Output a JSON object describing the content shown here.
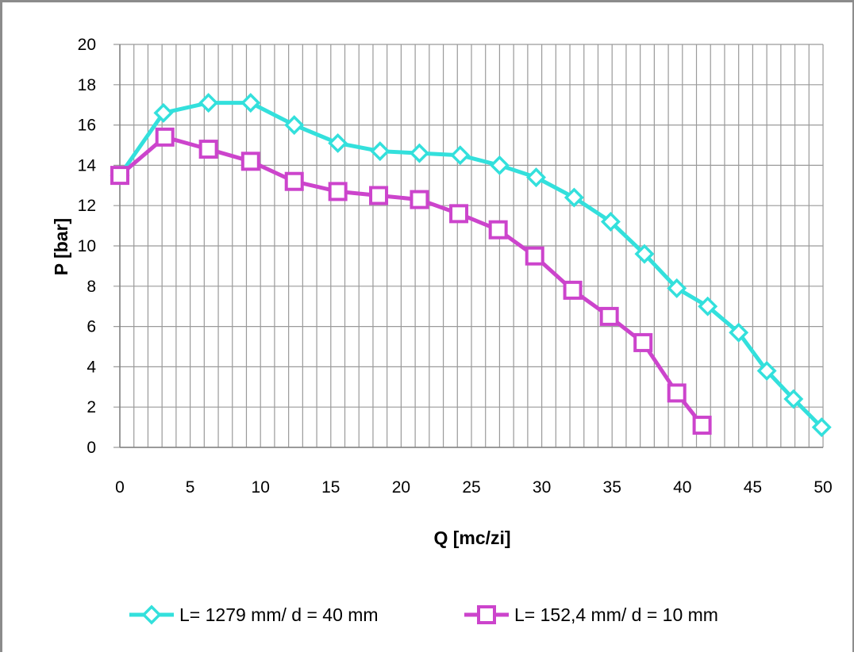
{
  "chart_data": {
    "type": "line",
    "title": "",
    "xlabel": "Q  [mc/zi]",
    "ylabel": "P [bar]",
    "xlim": [
      0,
      50
    ],
    "ylim": [
      0,
      20
    ],
    "x_ticks": [
      0,
      5,
      10,
      15,
      20,
      25,
      30,
      35,
      40,
      45,
      50
    ],
    "y_ticks": [
      0,
      2,
      4,
      6,
      8,
      10,
      12,
      14,
      16,
      18,
      20
    ],
    "grid": true,
    "legend_position": "bottom",
    "series": [
      {
        "name": "L= 1279 mm/ d = 40 mm",
        "color": "#33e0dc",
        "marker": "diamond",
        "x": [
          0,
          3.1,
          6.3,
          9.3,
          12.4,
          15.5,
          18.5,
          21.3,
          24.2,
          27.0,
          29.6,
          32.3,
          34.9,
          37.3,
          39.6,
          41.8,
          44.0,
          46.0,
          47.9,
          49.9
        ],
        "y": [
          13.5,
          16.6,
          17.1,
          17.1,
          16.0,
          15.1,
          14.7,
          14.6,
          14.5,
          14.0,
          13.4,
          12.4,
          11.2,
          9.6,
          7.9,
          7.0,
          5.7,
          3.8,
          2.4,
          1.0
        ]
      },
      {
        "name": "L= 152,4 mm/ d = 10 mm",
        "color": "#cc44cc",
        "marker": "square",
        "x": [
          0,
          3.2,
          6.3,
          9.3,
          12.4,
          15.5,
          18.4,
          21.3,
          24.1,
          26.9,
          29.5,
          32.2,
          34.8,
          37.2,
          39.6,
          41.4
        ],
        "y": [
          13.5,
          15.4,
          14.8,
          14.2,
          13.2,
          12.7,
          12.5,
          12.3,
          11.6,
          10.8,
          9.5,
          7.8,
          6.5,
          5.2,
          2.7,
          1.1
        ]
      }
    ]
  }
}
